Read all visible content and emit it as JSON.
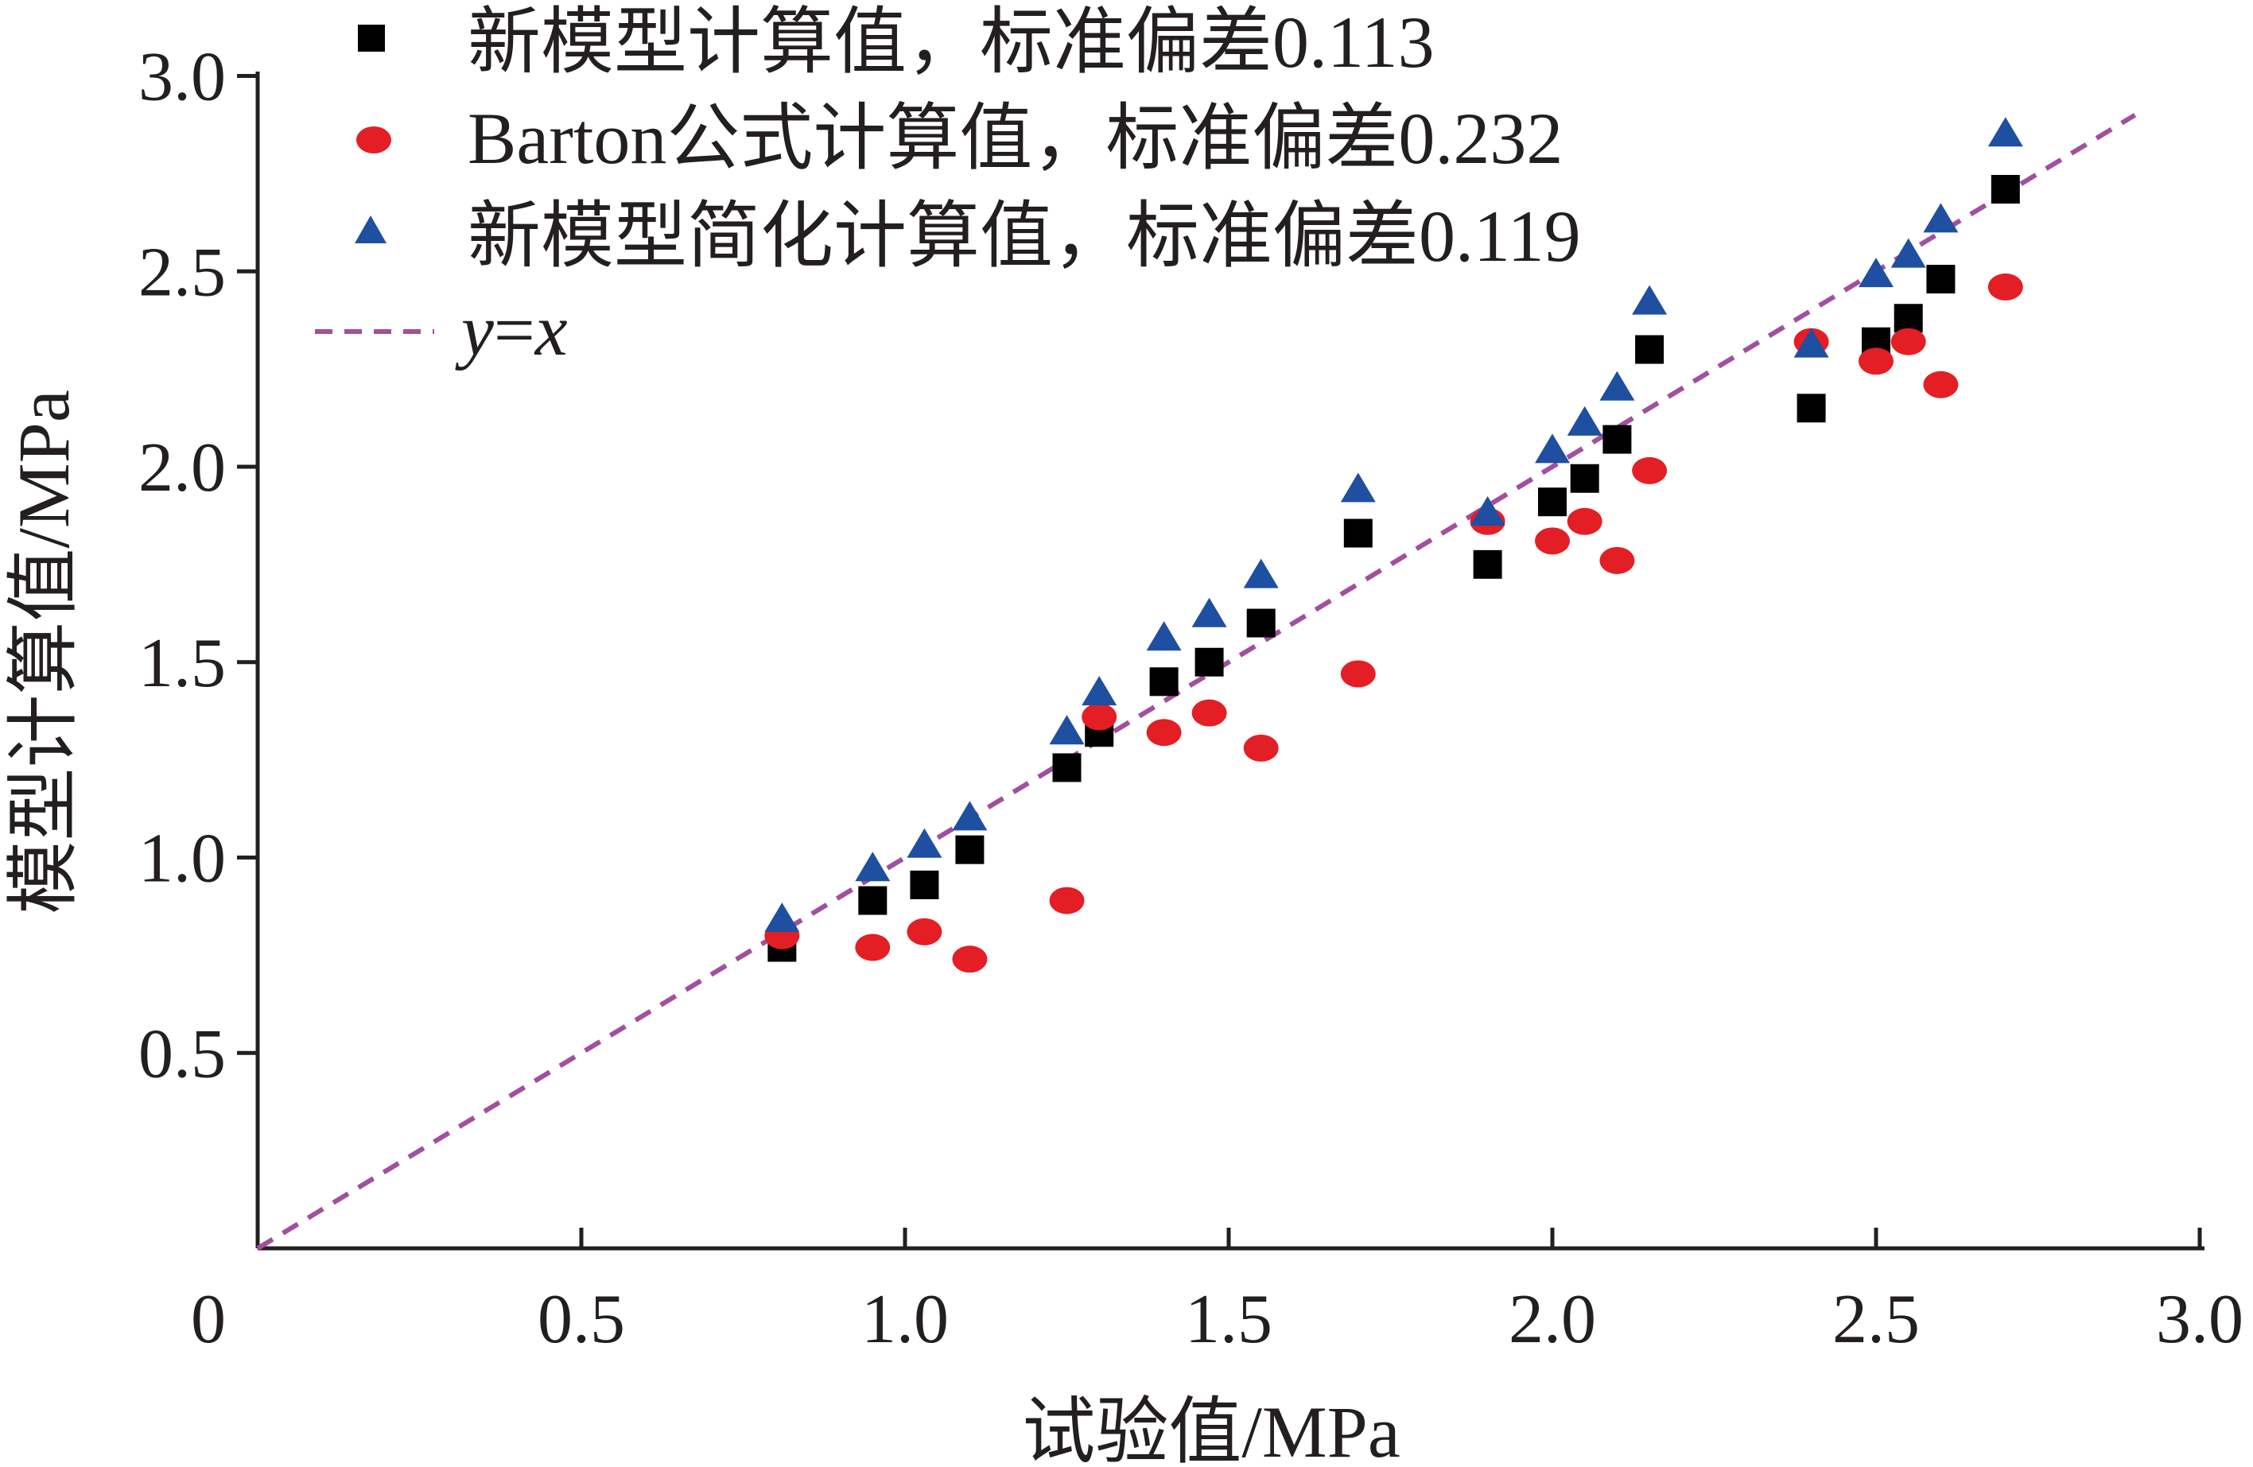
{
  "colors": {
    "axis": "#231f20",
    "new_model": "#000000",
    "barton": "#e41e25",
    "simplified": "#1f4fa0",
    "identity_line": "#a24f9f"
  },
  "chart_data": {
    "type": "scatter",
    "title": "",
    "xlabel": "试验值/MPa",
    "ylabel": "模型计算值/MPa",
    "xlim": [
      0,
      3.0
    ],
    "ylim": [
      0,
      3.0
    ],
    "x_ticks": [
      0.5,
      1.0,
      1.5,
      2.0,
      2.5,
      3.0
    ],
    "x_tick_labels": [
      "0.5",
      "1.0",
      "1.5",
      "2.0",
      "2.5",
      "3.0"
    ],
    "y_ticks": [
      0.5,
      1.0,
      1.5,
      2.0,
      2.5,
      3.0
    ],
    "y_tick_labels": [
      "0.5",
      "1.0",
      "1.5",
      "2.0",
      "2.5",
      "3.0"
    ],
    "origin_label": "0",
    "grid": false,
    "legend_position": "top-left",
    "series": [
      {
        "name": "新模型计算值，标准偏差0.113",
        "marker": "square",
        "color_key": "new_model",
        "points": [
          [
            0.81,
            0.77
          ],
          [
            0.95,
            0.89
          ],
          [
            1.03,
            0.93
          ],
          [
            1.1,
            1.02
          ],
          [
            1.25,
            1.23
          ],
          [
            1.3,
            1.32
          ],
          [
            1.4,
            1.45
          ],
          [
            1.47,
            1.5
          ],
          [
            1.55,
            1.6
          ],
          [
            1.7,
            1.83
          ],
          [
            1.9,
            1.75
          ],
          [
            2.0,
            1.91
          ],
          [
            2.05,
            1.97
          ],
          [
            2.1,
            2.07
          ],
          [
            2.15,
            2.3
          ],
          [
            2.4,
            2.15
          ],
          [
            2.5,
            2.32
          ],
          [
            2.55,
            2.38
          ],
          [
            2.6,
            2.48
          ],
          [
            2.7,
            2.71
          ]
        ]
      },
      {
        "name": "Barton公式计算值，标准偏差0.232",
        "marker": "circle",
        "color_key": "barton",
        "points": [
          [
            0.81,
            0.8
          ],
          [
            0.95,
            0.77
          ],
          [
            1.03,
            0.81
          ],
          [
            1.1,
            0.74
          ],
          [
            1.25,
            0.89
          ],
          [
            1.3,
            1.36
          ],
          [
            1.4,
            1.32
          ],
          [
            1.47,
            1.37
          ],
          [
            1.55,
            1.28
          ],
          [
            1.7,
            1.47
          ],
          [
            1.9,
            1.86
          ],
          [
            2.0,
            1.81
          ],
          [
            2.05,
            1.86
          ],
          [
            2.1,
            1.76
          ],
          [
            2.15,
            1.99
          ],
          [
            2.4,
            2.32
          ],
          [
            2.5,
            2.27
          ],
          [
            2.55,
            2.32
          ],
          [
            2.6,
            2.21
          ],
          [
            2.7,
            2.46
          ]
        ]
      },
      {
        "name": "新模型简化计算值，标准偏差0.119",
        "marker": "triangle",
        "color_key": "simplified",
        "points": [
          [
            0.81,
            0.84
          ],
          [
            0.95,
            0.97
          ],
          [
            1.03,
            1.03
          ],
          [
            1.1,
            1.1
          ],
          [
            1.25,
            1.32
          ],
          [
            1.3,
            1.42
          ],
          [
            1.4,
            1.56
          ],
          [
            1.47,
            1.62
          ],
          [
            1.55,
            1.72
          ],
          [
            1.7,
            1.94
          ],
          [
            1.9,
            1.88
          ],
          [
            2.0,
            2.04
          ],
          [
            2.05,
            2.11
          ],
          [
            2.1,
            2.2
          ],
          [
            2.15,
            2.42
          ],
          [
            2.4,
            2.31
          ],
          [
            2.5,
            2.49
          ],
          [
            2.55,
            2.54
          ],
          [
            2.6,
            2.63
          ],
          [
            2.7,
            2.85
          ]
        ]
      }
    ],
    "reference_line": {
      "name_prefix": "y",
      "name_equals": "=",
      "name_suffix": "x",
      "style": "dashed",
      "color_key": "identity_line",
      "x_range": [
        0,
        2.9
      ]
    }
  }
}
